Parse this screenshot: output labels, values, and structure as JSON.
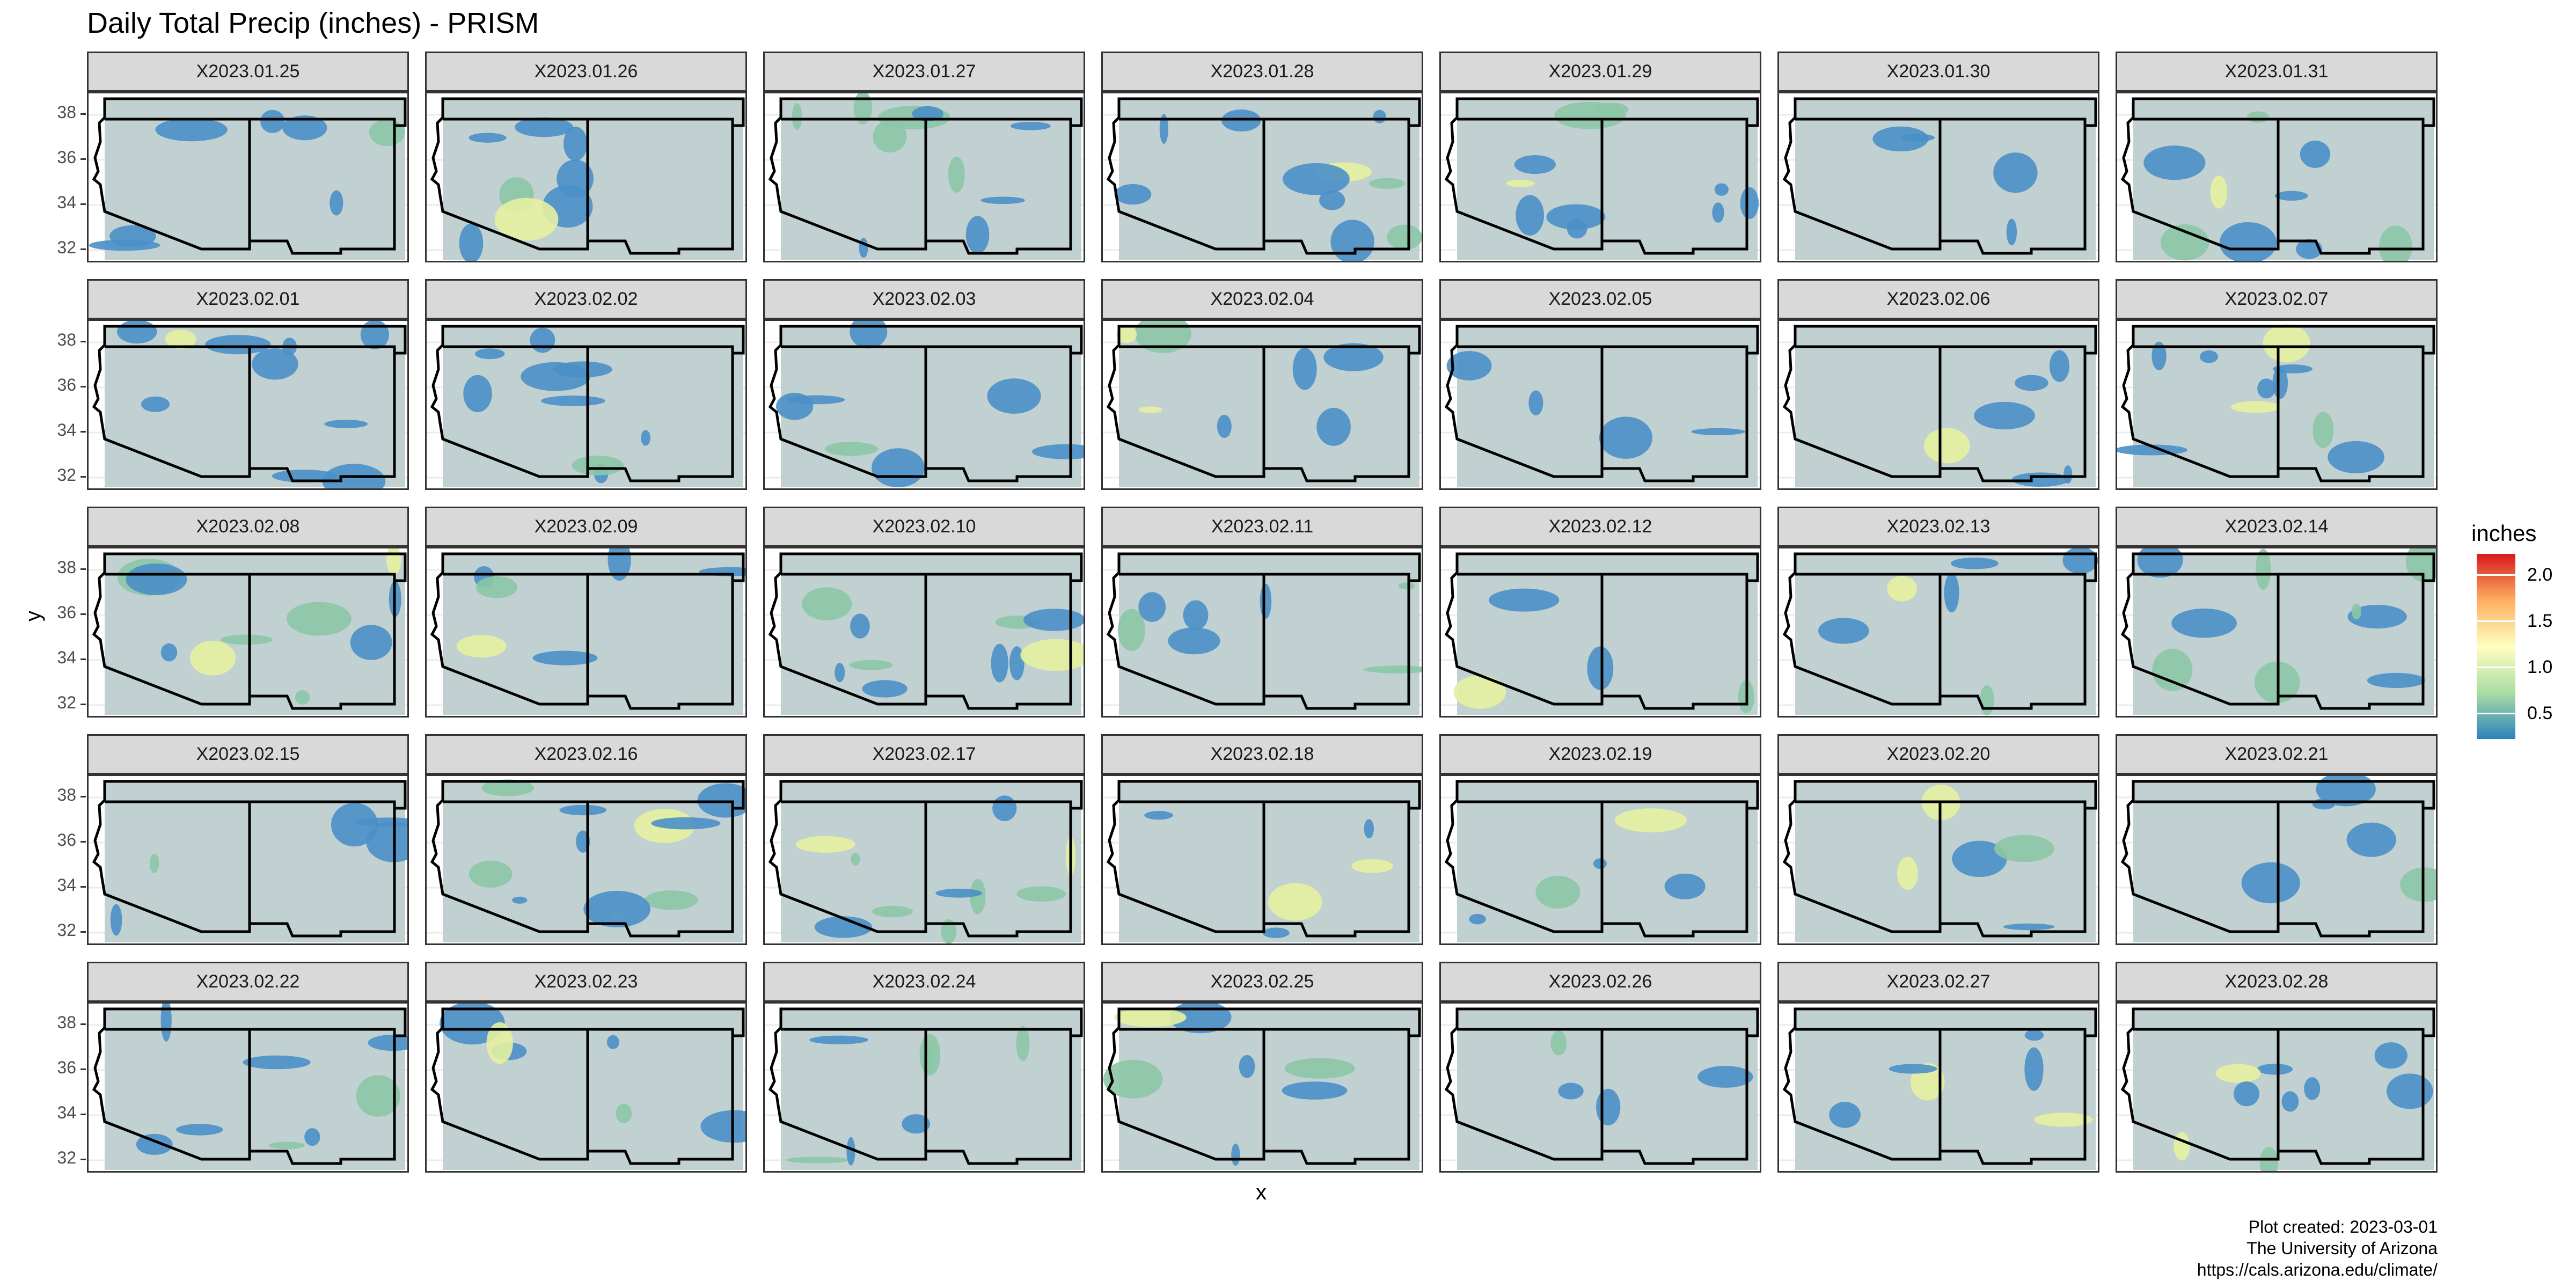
{
  "title": "Daily Total Precip (inches) - PRISM",
  "x_axis_label": "x",
  "y_axis_label": "y",
  "y_ticks": [
    "38",
    "36",
    "34",
    "32"
  ],
  "legend": {
    "title": "inches",
    "labels": [
      "2.0",
      "1.5",
      "1.0",
      "0.5"
    ],
    "colors": [
      "#2b83ba",
      "#abdda4",
      "#ffffbf",
      "#fdae61",
      "#d7191c"
    ]
  },
  "caption": [
    "Plot created: 2023-03-01",
    "The University of Arizona",
    "https://cals.arizona.edu/climate/"
  ],
  "colors": {
    "map_background": "#c1d0d0",
    "strip_background": "#d9d9d9",
    "state_border": "#000000",
    "low_precip": "#4a8fc7",
    "mid_precip": "#8cc6a6",
    "high_precip": "#e6f0a0"
  },
  "panels": [
    {
      "label": "X2023.01.25"
    },
    {
      "label": "X2023.01.26"
    },
    {
      "label": "X2023.01.27"
    },
    {
      "label": "X2023.01.28"
    },
    {
      "label": "X2023.01.29"
    },
    {
      "label": "X2023.01.30"
    },
    {
      "label": "X2023.01.31"
    },
    {
      "label": "X2023.02.01"
    },
    {
      "label": "X2023.02.02"
    },
    {
      "label": "X2023.02.03"
    },
    {
      "label": "X2023.02.04"
    },
    {
      "label": "X2023.02.05"
    },
    {
      "label": "X2023.02.06"
    },
    {
      "label": "X2023.02.07"
    },
    {
      "label": "X2023.02.08"
    },
    {
      "label": "X2023.02.09"
    },
    {
      "label": "X2023.02.10"
    },
    {
      "label": "X2023.02.11"
    },
    {
      "label": "X2023.02.12"
    },
    {
      "label": "X2023.02.13"
    },
    {
      "label": "X2023.02.14"
    },
    {
      "label": "X2023.02.15"
    },
    {
      "label": "X2023.02.16"
    },
    {
      "label": "X2023.02.17"
    },
    {
      "label": "X2023.02.18"
    },
    {
      "label": "X2023.02.19"
    },
    {
      "label": "X2023.02.20"
    },
    {
      "label": "X2023.02.21"
    },
    {
      "label": "X2023.02.22"
    },
    {
      "label": "X2023.02.23"
    },
    {
      "label": "X2023.02.24"
    },
    {
      "label": "X2023.02.25"
    },
    {
      "label": "X2023.02.26"
    },
    {
      "label": "X2023.02.27"
    },
    {
      "label": "X2023.02.28"
    }
  ]
}
